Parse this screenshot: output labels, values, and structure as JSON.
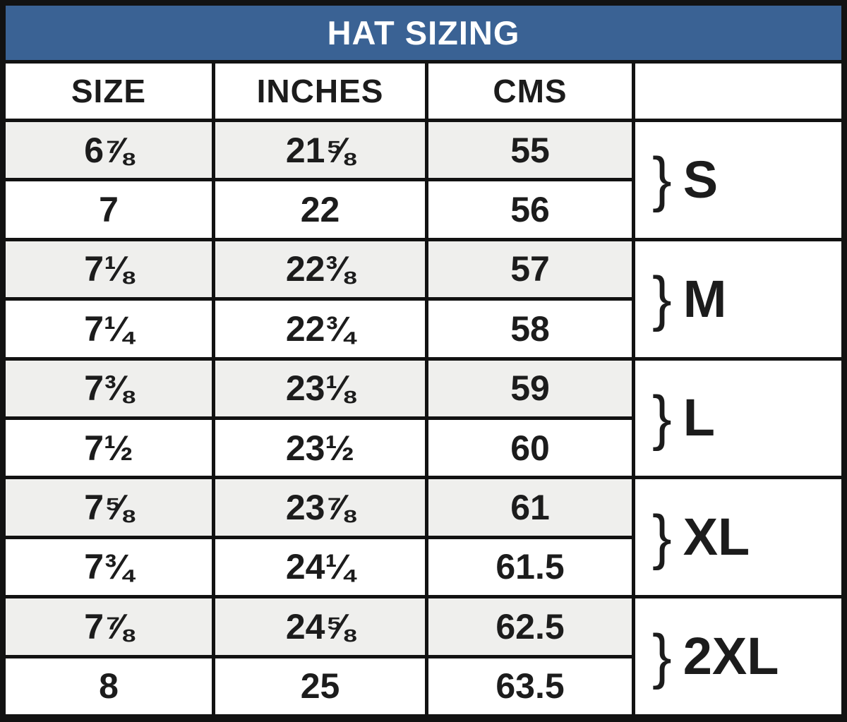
{
  "chart_data": {
    "type": "table",
    "title": "HAT SIZING",
    "columns": [
      "SIZE",
      "INCHES",
      "CMS",
      ""
    ],
    "rows": [
      {
        "size": "6⅞",
        "inches": "21⅝",
        "cms": "55",
        "group": "S"
      },
      {
        "size": "7",
        "inches": "22",
        "cms": "56",
        "group": "S"
      },
      {
        "size": "7⅛",
        "inches": "22⅜",
        "cms": "57",
        "group": "M"
      },
      {
        "size": "7¼",
        "inches": "22¾",
        "cms": "58",
        "group": "M"
      },
      {
        "size": "7⅜",
        "inches": "23⅛",
        "cms": "59",
        "group": "L"
      },
      {
        "size": "7½",
        "inches": "23½",
        "cms": "60",
        "group": "L"
      },
      {
        "size": "7⅝",
        "inches": "23⅞",
        "cms": "61",
        "group": "XL"
      },
      {
        "size": "7¾",
        "inches": "24¼",
        "cms": "61.5",
        "group": "XL"
      },
      {
        "size": "7⅞",
        "inches": "24⅝",
        "cms": "62.5",
        "group": "2XL"
      },
      {
        "size": "8",
        "inches": "25",
        "cms": "63.5",
        "group": "2XL"
      }
    ],
    "groups": [
      {
        "brace": "}",
        "label": "S"
      },
      {
        "brace": "}",
        "label": "M"
      },
      {
        "brace": "}",
        "label": "L"
      },
      {
        "brace": "}",
        "label": "XL"
      },
      {
        "brace": "}",
        "label": "2XL"
      }
    ],
    "layout_hints": {
      "shaded_rows": [
        0,
        2,
        4,
        6,
        8
      ],
      "group_row_span": 2,
      "grid": "on"
    }
  },
  "colors": {
    "title_bg": "#3a6294",
    "title_text": "#ffffff",
    "grid_line": "#121212",
    "row_shaded": "#efefed",
    "row_plain": "#ffffff",
    "text": "#1c1c1c"
  }
}
